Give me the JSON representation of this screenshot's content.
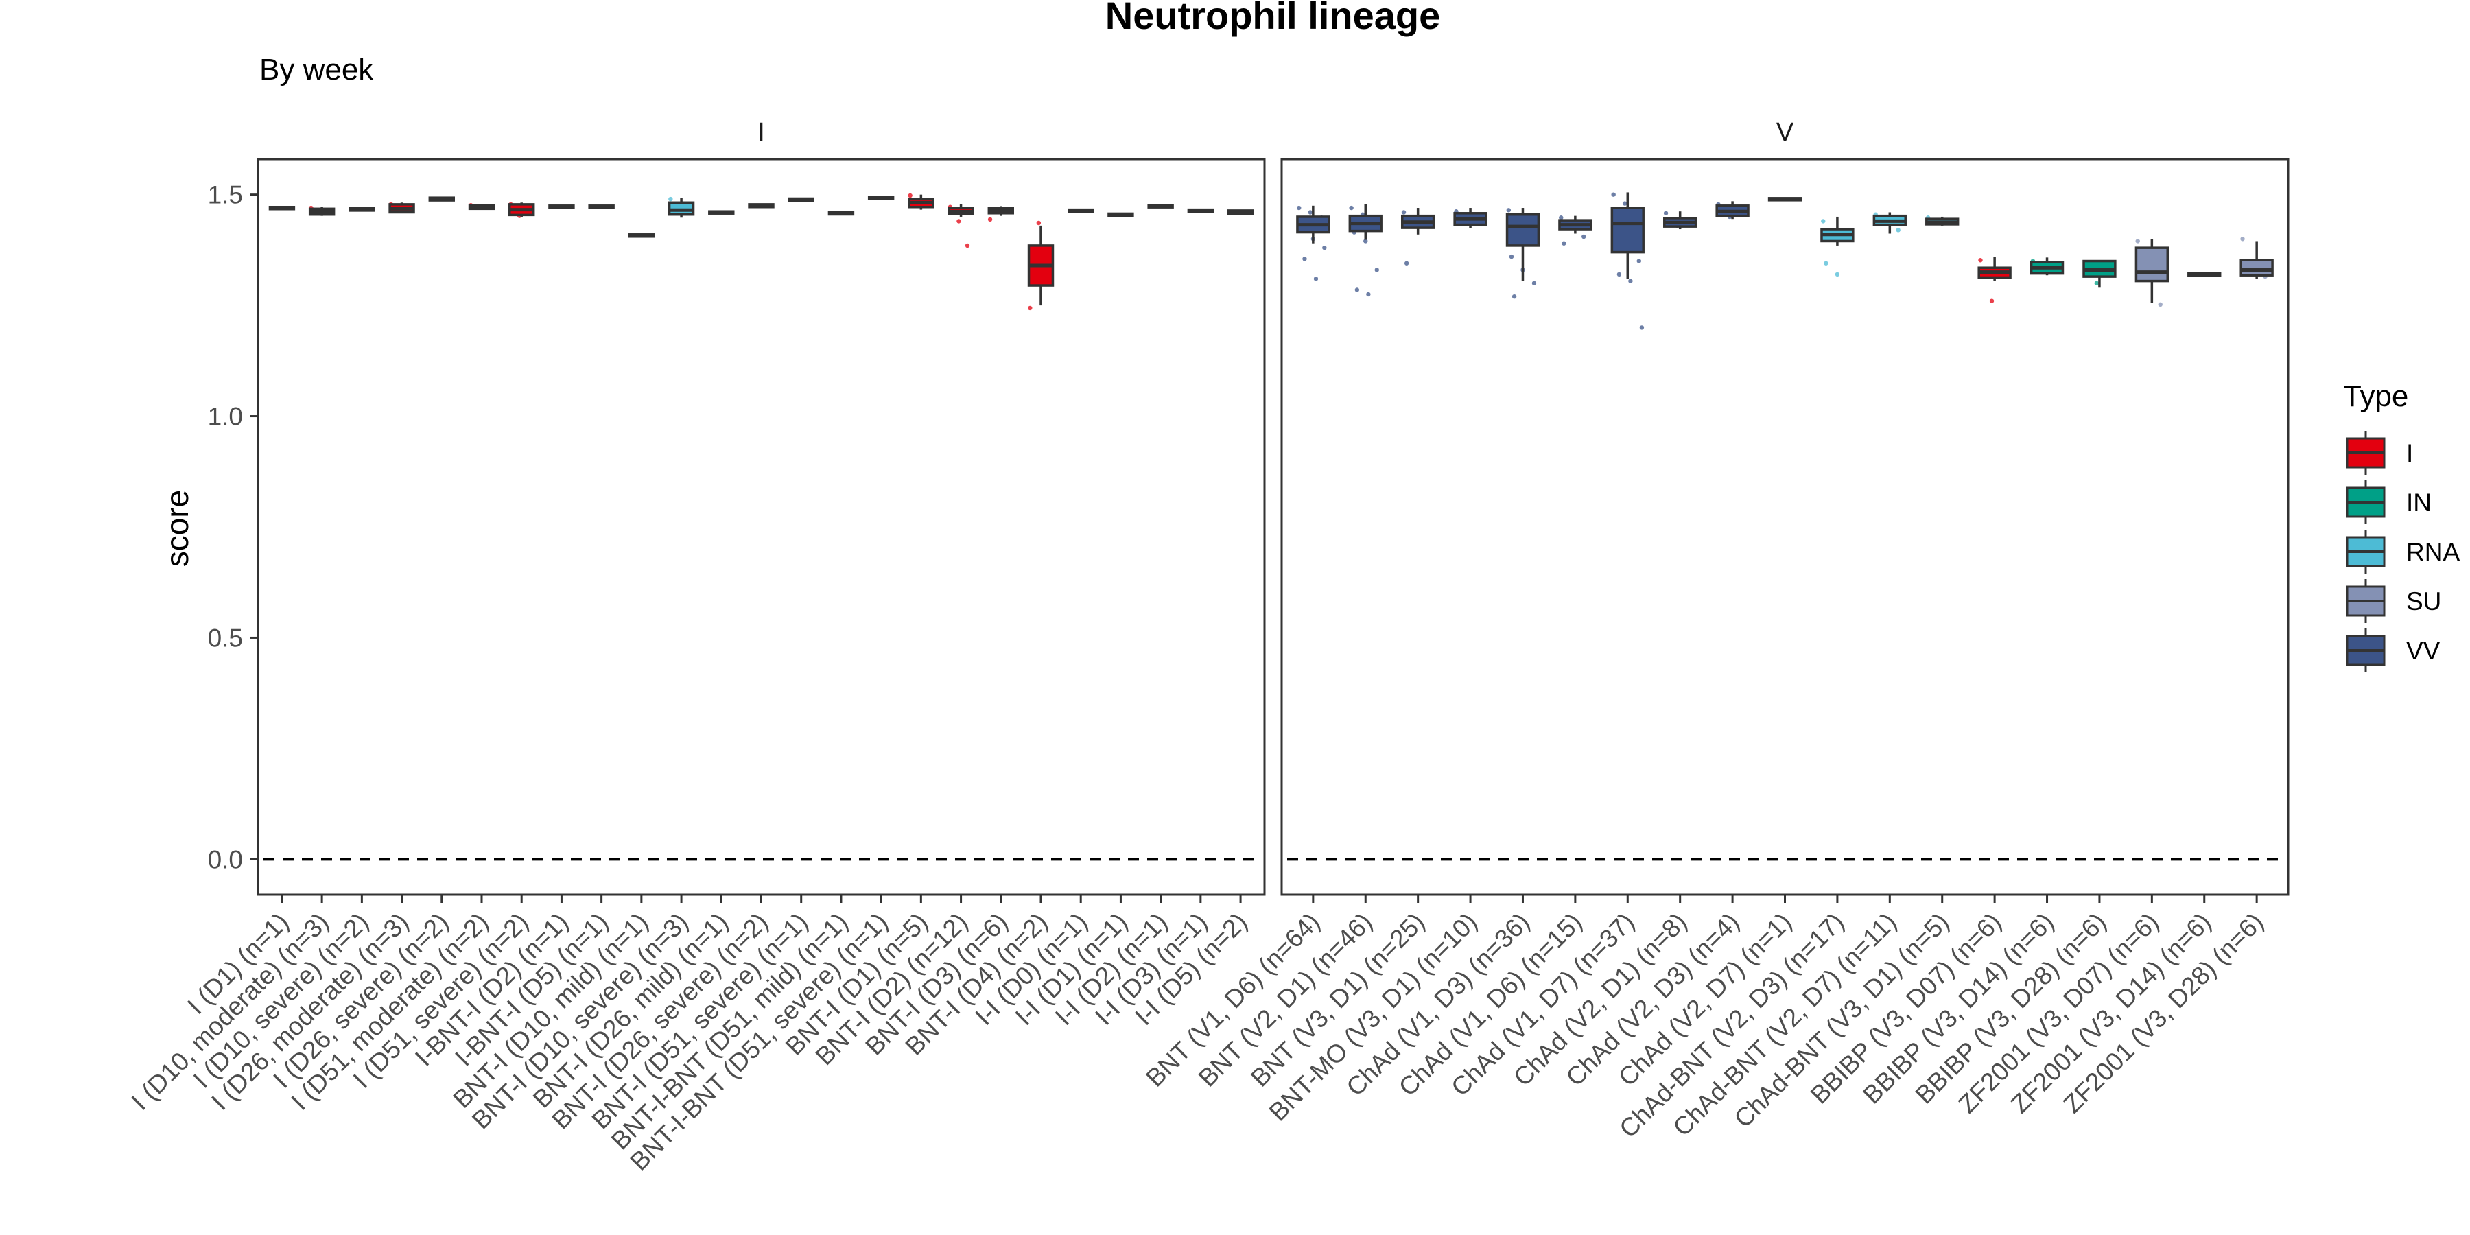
{
  "chart_data": {
    "type": "box",
    "title": "Neutrophil lineage",
    "subtitle": "By week",
    "ylabel": "score",
    "xlabel": "",
    "ylim": [
      -0.08,
      1.58
    ],
    "yticks": [
      0.0,
      0.5,
      1.0,
      1.5
    ],
    "ytick_labels": [
      "0.0",
      "0.5",
      "1.0",
      "1.5"
    ],
    "reference_line": 0.0,
    "grid": false,
    "legend": {
      "title": "Type",
      "placement": "right",
      "items": [
        {
          "label": "I",
          "color": "#E3000F"
        },
        {
          "label": "IN",
          "color": "#00A087"
        },
        {
          "label": "RNA",
          "color": "#4DBBD5"
        },
        {
          "label": "SU",
          "color": "#8491B4"
        },
        {
          "label": "VV",
          "color": "#3C5488"
        }
      ]
    },
    "facets": [
      {
        "label": "I",
        "groups": [
          {
            "label": "I (D1) (n=1)",
            "type": "I",
            "q1": 1.468,
            "median": 1.47,
            "q3": 1.472,
            "lo": 1.468,
            "hi": 1.472,
            "pts": []
          },
          {
            "label": "I (D10, moderate) (n=3)",
            "type": "I",
            "q1": 1.455,
            "median": 1.462,
            "q3": 1.468,
            "lo": 1.452,
            "hi": 1.472,
            "pts": [
              1.47
            ]
          },
          {
            "label": "I (D10, severe) (n=2)",
            "type": "I",
            "q1": 1.464,
            "median": 1.467,
            "q3": 1.47,
            "lo": 1.462,
            "hi": 1.472,
            "pts": []
          },
          {
            "label": "I (D26, moderate) (n=3)",
            "type": "I",
            "q1": 1.46,
            "median": 1.468,
            "q3": 1.478,
            "lo": 1.458,
            "hi": 1.482,
            "pts": [
              1.478
            ]
          },
          {
            "label": "I (D26, severe) (n=2)",
            "type": "I",
            "q1": 1.487,
            "median": 1.49,
            "q3": 1.493,
            "lo": 1.485,
            "hi": 1.495,
            "pts": []
          },
          {
            "label": "I (D51, moderate) (n=2)",
            "type": "I",
            "q1": 1.468,
            "median": 1.472,
            "q3": 1.476,
            "lo": 1.466,
            "hi": 1.478,
            "pts": [
              1.476
            ]
          },
          {
            "label": "I (D51, severe) (n=2)",
            "type": "I",
            "q1": 1.454,
            "median": 1.466,
            "q3": 1.478,
            "lo": 1.45,
            "hi": 1.482,
            "pts": [
              1.478,
              1.452
            ]
          },
          {
            "label": "I-BNT-I (D2) (n=1)",
            "type": "I",
            "q1": 1.471,
            "median": 1.473,
            "q3": 1.475,
            "lo": 1.471,
            "hi": 1.475,
            "pts": []
          },
          {
            "label": "I-BNT-I (D5) (n=1)",
            "type": "I",
            "q1": 1.471,
            "median": 1.473,
            "q3": 1.475,
            "lo": 1.471,
            "hi": 1.475,
            "pts": []
          },
          {
            "label": "BNT-I (D10, mild) (n=1)",
            "type": "I",
            "q1": 1.406,
            "median": 1.408,
            "q3": 1.41,
            "lo": 1.406,
            "hi": 1.41,
            "pts": []
          },
          {
            "label": "BNT-I (D10, severe) (n=3)",
            "type": "RNA",
            "q1": 1.455,
            "median": 1.465,
            "q3": 1.482,
            "lo": 1.448,
            "hi": 1.492,
            "pts": [
              1.49
            ]
          },
          {
            "label": "BNT-I (D26, mild) (n=1)",
            "type": "I",
            "q1": 1.458,
            "median": 1.46,
            "q3": 1.462,
            "lo": 1.458,
            "hi": 1.462,
            "pts": []
          },
          {
            "label": "BNT-I (D26, severe) (n=2)",
            "type": "I",
            "q1": 1.472,
            "median": 1.475,
            "q3": 1.478,
            "lo": 1.47,
            "hi": 1.48,
            "pts": []
          },
          {
            "label": "BNT-I (D51, severe) (n=1)",
            "type": "I",
            "q1": 1.487,
            "median": 1.489,
            "q3": 1.491,
            "lo": 1.487,
            "hi": 1.491,
            "pts": []
          },
          {
            "label": "BNT-I-BNT (D51, mild) (n=1)",
            "type": "I",
            "q1": 1.456,
            "median": 1.458,
            "q3": 1.46,
            "lo": 1.456,
            "hi": 1.46,
            "pts": []
          },
          {
            "label": "BNT-I-BNT (D51, severe) (n=1)",
            "type": "I",
            "q1": 1.491,
            "median": 1.493,
            "q3": 1.495,
            "lo": 1.491,
            "hi": 1.495,
            "pts": []
          },
          {
            "label": "BNT-I (D1) (n=5)",
            "type": "I",
            "q1": 1.472,
            "median": 1.482,
            "q3": 1.49,
            "lo": 1.466,
            "hi": 1.5,
            "pts": [
              1.498,
              1.476
            ]
          },
          {
            "label": "BNT-I (D2) (n=12)",
            "type": "I",
            "q1": 1.456,
            "median": 1.462,
            "q3": 1.47,
            "lo": 1.45,
            "hi": 1.478,
            "pts": [
              1.472,
              1.44,
              1.385
            ]
          },
          {
            "label": "BNT-I (D3) (n=6)",
            "type": "I",
            "q1": 1.458,
            "median": 1.464,
            "q3": 1.47,
            "lo": 1.452,
            "hi": 1.474,
            "pts": [
              1.444
            ]
          },
          {
            "label": "BNT-I (D4) (n=2)",
            "type": "I",
            "q1": 1.295,
            "median": 1.34,
            "q3": 1.385,
            "lo": 1.25,
            "hi": 1.43,
            "pts": [
              1.244,
              1.436
            ]
          },
          {
            "label": "I-I (D0) (n=1)",
            "type": "I",
            "q1": 1.462,
            "median": 1.464,
            "q3": 1.466,
            "lo": 1.462,
            "hi": 1.466,
            "pts": []
          },
          {
            "label": "I-I (D1) (n=1)",
            "type": "I",
            "q1": 1.453,
            "median": 1.455,
            "q3": 1.457,
            "lo": 1.453,
            "hi": 1.457,
            "pts": []
          },
          {
            "label": "I-I (D2) (n=1)",
            "type": "I",
            "q1": 1.472,
            "median": 1.474,
            "q3": 1.476,
            "lo": 1.472,
            "hi": 1.476,
            "pts": []
          },
          {
            "label": "I-I (D3) (n=1)",
            "type": "I",
            "q1": 1.462,
            "median": 1.464,
            "q3": 1.466,
            "lo": 1.462,
            "hi": 1.466,
            "pts": []
          },
          {
            "label": "I-I (D5) (n=2)",
            "type": "I",
            "q1": 1.456,
            "median": 1.46,
            "q3": 1.464,
            "lo": 1.454,
            "hi": 1.466,
            "pts": []
          }
        ]
      },
      {
        "label": "V",
        "groups": [
          {
            "label": "BNT (V1, D6) (n=64)",
            "type": "VV",
            "q1": 1.415,
            "median": 1.432,
            "q3": 1.45,
            "lo": 1.39,
            "hi": 1.475,
            "pts": [
              1.47,
              1.46,
              1.448,
              1.42,
              1.4,
              1.38,
              1.355,
              1.31
            ]
          },
          {
            "label": "BNT (V2, D1) (n=46)",
            "type": "VV",
            "q1": 1.418,
            "median": 1.435,
            "q3": 1.452,
            "lo": 1.398,
            "hi": 1.478,
            "pts": [
              1.47,
              1.455,
              1.44,
              1.415,
              1.395,
              1.33,
              1.285,
              1.275
            ]
          },
          {
            "label": "BNT (V3, D1) (n=25)",
            "type": "VV",
            "q1": 1.425,
            "median": 1.438,
            "q3": 1.452,
            "lo": 1.41,
            "hi": 1.47,
            "pts": [
              1.46,
              1.445,
              1.428,
              1.345
            ]
          },
          {
            "label": "BNT-MO (V3, D1) (n=10)",
            "type": "VV",
            "q1": 1.432,
            "median": 1.445,
            "q3": 1.458,
            "lo": 1.425,
            "hi": 1.47,
            "pts": [
              1.462,
              1.44
            ]
          },
          {
            "label": "ChAd (V1, D3) (n=36)",
            "type": "VV",
            "q1": 1.385,
            "median": 1.428,
            "q3": 1.455,
            "lo": 1.305,
            "hi": 1.47,
            "pts": [
              1.465,
              1.44,
              1.4,
              1.36,
              1.33,
              1.3,
              1.27
            ]
          },
          {
            "label": "ChAd (V1, D6) (n=15)",
            "type": "VV",
            "q1": 1.422,
            "median": 1.432,
            "q3": 1.442,
            "lo": 1.412,
            "hi": 1.452,
            "pts": [
              1.448,
              1.428,
              1.405,
              1.39
            ]
          },
          {
            "label": "ChAd (V1, D7) (n=37)",
            "type": "VV",
            "q1": 1.37,
            "median": 1.435,
            "q3": 1.47,
            "lo": 1.31,
            "hi": 1.505,
            "pts": [
              1.5,
              1.48,
              1.455,
              1.42,
              1.39,
              1.35,
              1.32,
              1.305,
              1.2
            ]
          },
          {
            "label": "ChAd (V2, D1) (n=8)",
            "type": "VV",
            "q1": 1.428,
            "median": 1.437,
            "q3": 1.447,
            "lo": 1.422,
            "hi": 1.462,
            "pts": [
              1.458,
              1.43
            ]
          },
          {
            "label": "ChAd (V2, D3) (n=4)",
            "type": "VV",
            "q1": 1.452,
            "median": 1.462,
            "q3": 1.475,
            "lo": 1.445,
            "hi": 1.485,
            "pts": [
              1.478,
              1.45
            ]
          },
          {
            "label": "ChAd (V2, D7) (n=1)",
            "type": "VV",
            "q1": 1.488,
            "median": 1.49,
            "q3": 1.492,
            "lo": 1.488,
            "hi": 1.492,
            "pts": []
          },
          {
            "label": "ChAd-BNT (V2, D3) (n=17)",
            "type": "RNA",
            "q1": 1.395,
            "median": 1.41,
            "q3": 1.422,
            "lo": 1.385,
            "hi": 1.45,
            "pts": [
              1.44,
              1.412,
              1.4,
              1.345,
              1.32
            ]
          },
          {
            "label": "ChAd-BNT (V2, D7) (n=11)",
            "type": "RNA",
            "q1": 1.432,
            "median": 1.44,
            "q3": 1.452,
            "lo": 1.412,
            "hi": 1.46,
            "pts": [
              1.455,
              1.435,
              1.42
            ]
          },
          {
            "label": "ChAd-BNT (V3, D1) (n=5)",
            "type": "RNA",
            "q1": 1.433,
            "median": 1.438,
            "q3": 1.445,
            "lo": 1.43,
            "hi": 1.45,
            "pts": [
              1.448,
              1.436
            ]
          },
          {
            "label": "BBIBP (V3, D07) (n=6)",
            "type": "I",
            "q1": 1.313,
            "median": 1.325,
            "q3": 1.335,
            "lo": 1.305,
            "hi": 1.36,
            "pts": [
              1.352,
              1.26
            ]
          },
          {
            "label": "BBIBP (V3, D14) (n=6)",
            "type": "IN",
            "q1": 1.322,
            "median": 1.335,
            "q3": 1.348,
            "lo": 1.318,
            "hi": 1.358,
            "pts": [
              1.35,
              1.33
            ]
          },
          {
            "label": "BBIBP (V3, D28) (n=6)",
            "type": "IN",
            "q1": 1.315,
            "median": 1.33,
            "q3": 1.35,
            "lo": 1.29,
            "hi": 1.352,
            "pts": [
              1.345,
              1.3
            ]
          },
          {
            "label": "ZF2001 (V3, D07) (n=6)",
            "type": "SU",
            "q1": 1.305,
            "median": 1.325,
            "q3": 1.38,
            "lo": 1.255,
            "hi": 1.4,
            "pts": [
              1.395,
              1.36,
              1.252
            ]
          },
          {
            "label": "ZF2001 (V3, D14) (n=6)",
            "type": "SU",
            "q1": 1.317,
            "median": 1.32,
            "q3": 1.323,
            "lo": 1.315,
            "hi": 1.325,
            "pts": []
          },
          {
            "label": "ZF2001 (V3, D28) (n=6)",
            "type": "SU",
            "q1": 1.318,
            "median": 1.33,
            "q3": 1.352,
            "lo": 1.31,
            "hi": 1.395,
            "pts": [
              1.4,
              1.34,
              1.315
            ]
          }
        ]
      }
    ]
  }
}
